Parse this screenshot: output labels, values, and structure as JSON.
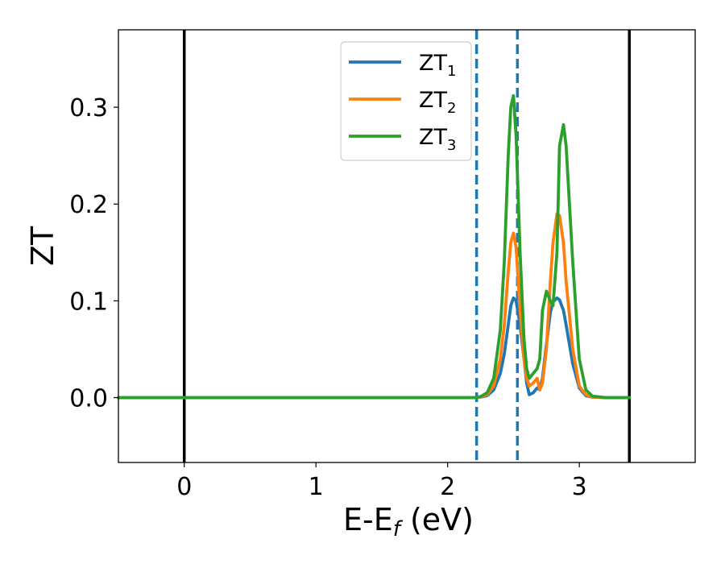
{
  "chart_data": {
    "type": "line",
    "xlabel": "E-E",
    "xlabel_sub": "f",
    "xlabel_unit": " (eV)",
    "ylabel": "ZT",
    "xlim": [
      -0.5,
      3.88
    ],
    "ylim": [
      -0.067,
      0.38
    ],
    "xticks": [
      0,
      1,
      2,
      3
    ],
    "xtick_labels": [
      "0",
      "1",
      "2",
      "3"
    ],
    "yticks": [
      0.0,
      0.1,
      0.2,
      0.3
    ],
    "ytick_labels": [
      "0.0",
      "0.1",
      "0.2",
      "0.3"
    ],
    "grid": false,
    "legend_position": "top-center",
    "vlines": [
      {
        "x": 0.0,
        "style": "solid",
        "color": "#000000"
      },
      {
        "x": 3.38,
        "style": "solid",
        "color": "#000000"
      },
      {
        "x": 2.22,
        "style": "dashed",
        "color": "#1f77b4"
      },
      {
        "x": 2.53,
        "style": "dashed",
        "color": "#1f77b4"
      }
    ],
    "x": [
      -0.5,
      0.0,
      0.5,
      1.0,
      1.5,
      2.0,
      2.2,
      2.25,
      2.3,
      2.35,
      2.4,
      2.43,
      2.46,
      2.48,
      2.5,
      2.52,
      2.55,
      2.58,
      2.6,
      2.62,
      2.65,
      2.68,
      2.7,
      2.72,
      2.75,
      2.78,
      2.8,
      2.83,
      2.85,
      2.88,
      2.9,
      2.95,
      3.0,
      3.05,
      3.1,
      3.2,
      3.3,
      3.38
    ],
    "series": [
      {
        "name": "ZT",
        "name_sub": "1",
        "color": "#1f77b4",
        "values": [
          0,
          0,
          0,
          0,
          0,
          0,
          0,
          0.0005,
          0.002,
          0.008,
          0.025,
          0.045,
          0.075,
          0.095,
          0.103,
          0.1,
          0.075,
          0.04,
          0.015,
          0.003,
          0.005,
          0.01,
          0.008,
          0.02,
          0.055,
          0.088,
          0.099,
          0.103,
          0.101,
          0.09,
          0.075,
          0.035,
          0.01,
          0.002,
          0.0005,
          0,
          0,
          0
        ]
      },
      {
        "name": "ZT",
        "name_sub": "2",
        "color": "#ff7f0e",
        "values": [
          0,
          0,
          0,
          0,
          0,
          0,
          0,
          0.0007,
          0.003,
          0.012,
          0.04,
          0.075,
          0.13,
          0.16,
          0.17,
          0.155,
          0.09,
          0.04,
          0.02,
          0.012,
          0.015,
          0.02,
          0.008,
          0.015,
          0.05,
          0.12,
          0.16,
          0.19,
          0.188,
          0.16,
          0.12,
          0.05,
          0.012,
          0.003,
          0.0006,
          0,
          0,
          0
        ]
      },
      {
        "name": "ZT",
        "name_sub": "3",
        "color": "#2ca02c",
        "values": [
          0,
          0,
          0,
          0,
          0,
          0,
          0,
          0.001,
          0.005,
          0.02,
          0.07,
          0.14,
          0.25,
          0.3,
          0.312,
          0.27,
          0.15,
          0.06,
          0.03,
          0.02,
          0.025,
          0.03,
          0.04,
          0.09,
          0.11,
          0.1,
          0.095,
          0.15,
          0.26,
          0.282,
          0.26,
          0.14,
          0.04,
          0.008,
          0.0015,
          0,
          0,
          0
        ]
      }
    ]
  }
}
